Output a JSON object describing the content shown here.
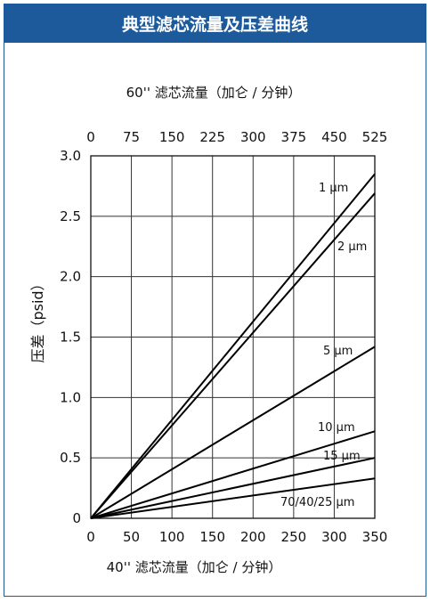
{
  "chart_data": {
    "type": "line",
    "title": "典型滤芯流量及压差曲线",
    "top_axis_label": "60'' 滤芯流量（加仑 / 分钟）",
    "top_ticks": [
      "0",
      "75",
      "150",
      "225",
      "300",
      "375",
      "450",
      "525"
    ],
    "xlabel": "40'' 滤芯流量（加仑 / 分钟）",
    "x_ticks": [
      "0",
      "50",
      "100",
      "150",
      "200",
      "250",
      "300",
      "350"
    ],
    "ylabel": "压差（psid）",
    "y_ticks": [
      "0",
      "0.5",
      "1.0",
      "1.5",
      "2.0",
      "2.5",
      "3.0"
    ],
    "xlim": [
      0,
      350
    ],
    "ylim": [
      0,
      3.0
    ],
    "grid": true,
    "series": [
      {
        "name": "1 µm",
        "x": [
          0,
          350
        ],
        "y": [
          0,
          2.85
        ]
      },
      {
        "name": "2 µm",
        "x": [
          0,
          350
        ],
        "y": [
          0,
          2.69
        ]
      },
      {
        "name": "5 µm",
        "x": [
          0,
          350
        ],
        "y": [
          0,
          1.42
        ]
      },
      {
        "name": "10 µm",
        "x": [
          0,
          350
        ],
        "y": [
          0,
          0.72
        ]
      },
      {
        "name": "15 µm",
        "x": [
          0,
          350
        ],
        "y": [
          0,
          0.5
        ]
      },
      {
        "name": "70/40/25 µm",
        "x": [
          0,
          350
        ],
        "y": [
          0,
          0.33
        ]
      }
    ]
  }
}
